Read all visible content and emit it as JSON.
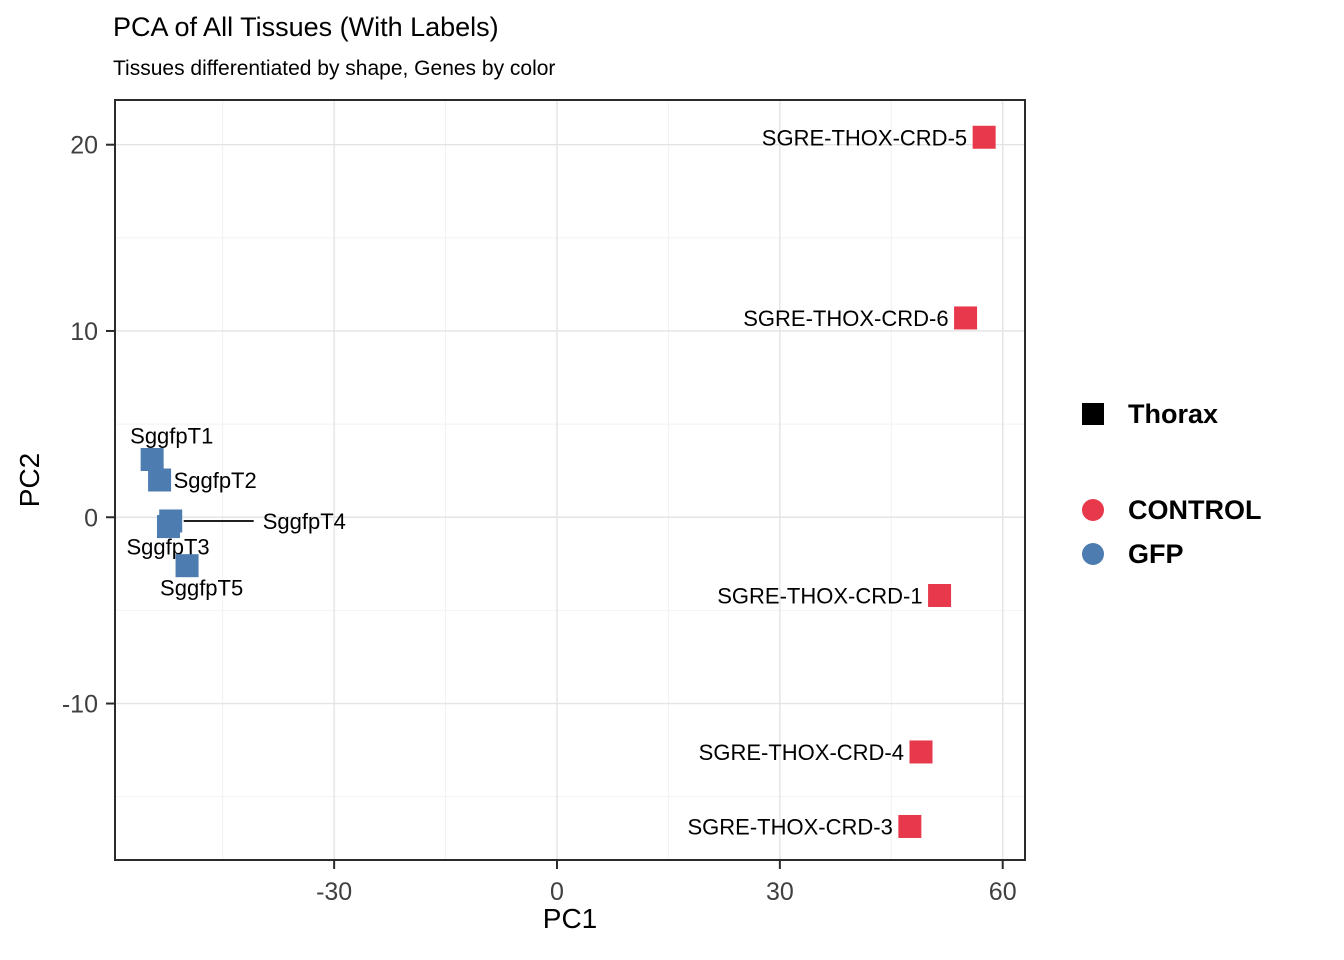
{
  "title": "PCA of All Tissues (With Labels)",
  "subtitle": "Tissues differentiated by shape, Genes by color",
  "chart_data": {
    "type": "scatter",
    "title": "PCA of All Tissues (With Labels)",
    "subtitle": "Tissues differentiated by shape, Genes by color",
    "xlabel": "PC1",
    "ylabel": "PC2",
    "xlim": [
      -59.5,
      63
    ],
    "ylim": [
      -18.4,
      22.4
    ],
    "x_ticks": [
      -30,
      0,
      30,
      60
    ],
    "y_ticks": [
      -10,
      0,
      10,
      20
    ],
    "x_minor_ticks": [
      -45,
      -15,
      15,
      45
    ],
    "y_minor_ticks": [
      -15,
      -5,
      5,
      15
    ],
    "grid": true,
    "legend_position": "right",
    "point_shape": "square",
    "series": [
      {
        "name": "CONTROL",
        "color": "#E8384B",
        "points": [
          {
            "label": "SGRE-THOX-CRD-5",
            "x": 57.5,
            "y": 20.4,
            "label_anchor": "end",
            "label_dx": -17,
            "label_dy": 8
          },
          {
            "label": "SGRE-THOX-CRD-6",
            "x": 55.0,
            "y": 10.7,
            "label_anchor": "end",
            "label_dx": -17,
            "label_dy": 8
          },
          {
            "label": "SGRE-THOX-CRD-1",
            "x": 51.5,
            "y": -4.2,
            "label_anchor": "end",
            "label_dx": -17,
            "label_dy": 8
          },
          {
            "label": "SGRE-THOX-CRD-4",
            "x": 49.0,
            "y": -12.6,
            "label_anchor": "end",
            "label_dx": -17,
            "label_dy": 8
          },
          {
            "label": "SGRE-THOX-CRD-3",
            "x": 47.5,
            "y": -16.6,
            "label_anchor": "end",
            "label_dx": -17,
            "label_dy": 8
          }
        ]
      },
      {
        "name": "GFP",
        "color": "#4C7CB0",
        "points": [
          {
            "label": "SggfpT1",
            "x": -54.5,
            "y": 3.1,
            "label_anchor": "start",
            "label_dx": -22,
            "label_dy": -16
          },
          {
            "label": "SggfpT2",
            "x": -53.5,
            "y": 2.0,
            "label_anchor": "start",
            "label_dx": 14,
            "label_dy": 8
          },
          {
            "label": "SggfpT4",
            "x": -52.0,
            "y": -0.2,
            "label_anchor": "start",
            "label_dx": 92,
            "label_dy": 8,
            "leader": true
          },
          {
            "label": "SggfpT3",
            "x": -52.3,
            "y": -0.5,
            "label_anchor": "start",
            "label_dx": -42,
            "label_dy": 28
          },
          {
            "label": "SggfpT5",
            "x": -49.8,
            "y": -2.6,
            "label_anchor": "start",
            "label_dx": -27,
            "label_dy": 30
          }
        ]
      }
    ],
    "shape_legend": {
      "entries": [
        {
          "label": "Thorax",
          "shape": "square",
          "color": "#000000"
        }
      ]
    },
    "color_legend": {
      "entries": [
        {
          "label": "CONTROL",
          "shape": "circle",
          "color": "#E8384B"
        },
        {
          "label": "GFP",
          "shape": "circle",
          "color": "#4C7CB0"
        }
      ]
    }
  },
  "colors": {
    "grid_major": "#E4E4E4",
    "grid_minor": "#F2F2F2",
    "panel_border": "#2B2B2B",
    "tick_label": "#404040",
    "text": "#000000",
    "background": "#FFFFFF"
  }
}
